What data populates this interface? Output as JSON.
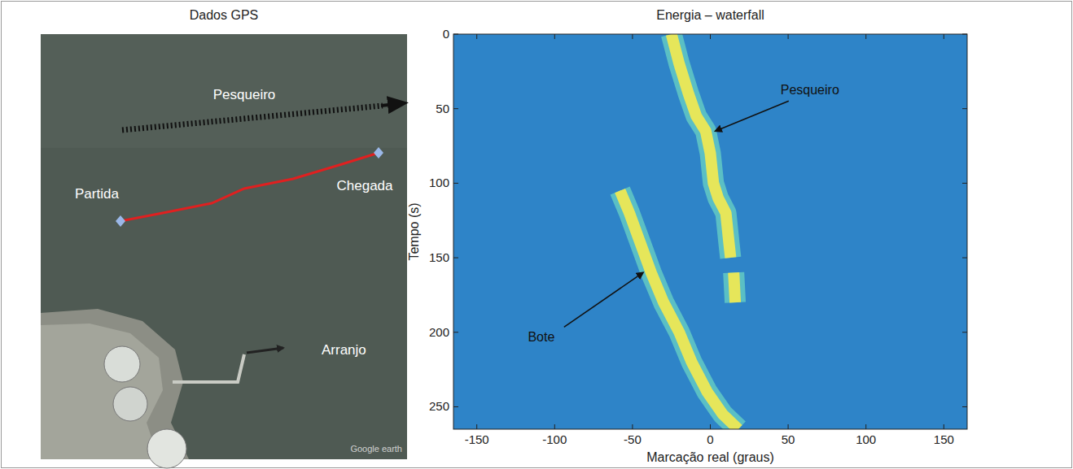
{
  "gps_panel": {
    "title": "Dados GPS",
    "labels": {
      "pesqueiro": "Pesqueiro",
      "partida": "Partida",
      "chegada": "Chegada",
      "arranjo": "Arranjo",
      "credit": "Google earth"
    }
  },
  "chart_data": {
    "type": "waterfall",
    "title": "Energia – waterfall",
    "x_label": "Marcação real (graus)",
    "y_label": "Tempo (s)",
    "xlim": [
      -165,
      165
    ],
    "xticks": [
      -150,
      -100,
      -50,
      0,
      50,
      100,
      150
    ],
    "ylim": [
      0,
      265
    ],
    "yticks": [
      0,
      50,
      100,
      150,
      200,
      250
    ],
    "series": [
      {
        "name": "Pesqueiro",
        "color": "#e6e65a",
        "x": [
          -25,
          -20,
          -14,
          -9,
          -3,
          0,
          2,
          5,
          10,
          12,
          13,
          null,
          15,
          16
        ],
        "values": [
          0,
          20,
          40,
          55,
          65,
          80,
          100,
          110,
          120,
          140,
          150,
          null,
          160,
          180
        ]
      },
      {
        "name": "Bote",
        "color": "#e6e65a",
        "x": [
          -58,
          -52,
          -45,
          -38,
          -30,
          -20,
          -12,
          -2,
          8,
          18
        ],
        "values": [
          105,
          120,
          140,
          160,
          180,
          200,
          220,
          240,
          255,
          265
        ]
      }
    ]
  }
}
